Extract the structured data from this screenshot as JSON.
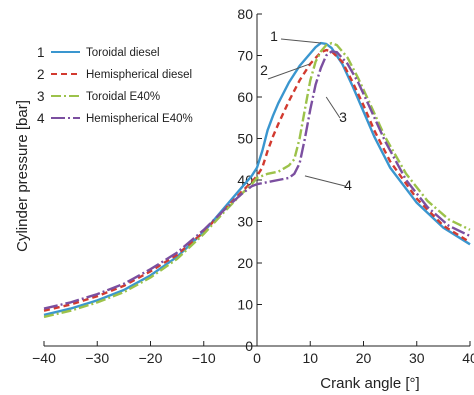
{
  "chart_data": {
    "type": "line",
    "title": "",
    "xlabel": "Crank angle [°]",
    "ylabel": "Cylinder pressure [bar]",
    "xlim": [
      -40,
      40
    ],
    "ylim": [
      0,
      80
    ],
    "x_ticks": [
      -40,
      -30,
      -20,
      -10,
      0,
      10,
      20,
      30,
      40
    ],
    "y_ticks": [
      0,
      10,
      20,
      30,
      40,
      50,
      60,
      70,
      80
    ],
    "grid": false,
    "legend_position": "top-left",
    "series": [
      {
        "id": "1",
        "name": "Toroidal diesel",
        "color": "#3a96cf",
        "dash": "solid",
        "points": [
          [
            -40,
            7.5
          ],
          [
            -35,
            9.0
          ],
          [
            -30,
            11.0
          ],
          [
            -25,
            13.5
          ],
          [
            -20,
            17.0
          ],
          [
            -15,
            21.5
          ],
          [
            -10,
            27.5
          ],
          [
            -6,
            33.5
          ],
          [
            -3,
            38.0
          ],
          [
            -1,
            41.0
          ],
          [
            0,
            43.0
          ],
          [
            1,
            47.0
          ],
          [
            2,
            52.0
          ],
          [
            3,
            55.5
          ],
          [
            4,
            58.5
          ],
          [
            6,
            63.5
          ],
          [
            8,
            67.5
          ],
          [
            10,
            70.5
          ],
          [
            11,
            72.0
          ],
          [
            12,
            73.0
          ],
          [
            13,
            72.8
          ],
          [
            14,
            71.8
          ],
          [
            16,
            68.0
          ],
          [
            18,
            62.5
          ],
          [
            20,
            56.5
          ],
          [
            22,
            50.5
          ],
          [
            25,
            43.0
          ],
          [
            30,
            34.5
          ],
          [
            35,
            28.5
          ],
          [
            40,
            24.5
          ]
        ]
      },
      {
        "id": "2",
        "name": "Hemispherical diesel",
        "color": "#d23a2f",
        "dash": "6,4",
        "points": [
          [
            -40,
            8.5
          ],
          [
            -35,
            10.0
          ],
          [
            -30,
            12.0
          ],
          [
            -25,
            14.5
          ],
          [
            -20,
            18.0
          ],
          [
            -15,
            22.0
          ],
          [
            -10,
            27.5
          ],
          [
            -6,
            33.0
          ],
          [
            -3,
            37.0
          ],
          [
            -1,
            39.5
          ],
          [
            0,
            41.0
          ],
          [
            1,
            43.0
          ],
          [
            2,
            47.0
          ],
          [
            3,
            50.5
          ],
          [
            4,
            53.5
          ],
          [
            6,
            59.0
          ],
          [
            8,
            64.0
          ],
          [
            10,
            68.0
          ],
          [
            12,
            70.8
          ],
          [
            13,
            71.3
          ],
          [
            14,
            71.0
          ],
          [
            16,
            68.5
          ],
          [
            18,
            63.5
          ],
          [
            20,
            58.0
          ],
          [
            22,
            52.0
          ],
          [
            25,
            44.5
          ],
          [
            30,
            35.5
          ],
          [
            35,
            29.0
          ],
          [
            40,
            25.0
          ]
        ]
      },
      {
        "id": "3",
        "name": "Toroidal E40%",
        "color": "#9cc24a",
        "dash": "10,3,2,3",
        "points": [
          [
            -40,
            7.0
          ],
          [
            -35,
            8.5
          ],
          [
            -30,
            10.5
          ],
          [
            -25,
            13.0
          ],
          [
            -20,
            16.5
          ],
          [
            -15,
            21.0
          ],
          [
            -10,
            27.0
          ],
          [
            -6,
            32.5
          ],
          [
            -3,
            36.5
          ],
          [
            -1,
            39.0
          ],
          [
            0,
            40.5
          ],
          [
            2,
            41.5
          ],
          [
            4,
            42.0
          ],
          [
            6,
            43.5
          ],
          [
            7,
            45.0
          ],
          [
            8,
            50.0
          ],
          [
            9,
            57.0
          ],
          [
            10,
            64.0
          ],
          [
            11,
            68.5
          ],
          [
            12,
            71.0
          ],
          [
            13,
            72.5
          ],
          [
            14,
            73.0
          ],
          [
            15,
            72.5
          ],
          [
            17,
            69.5
          ],
          [
            19,
            64.5
          ],
          [
            21,
            59.0
          ],
          [
            24,
            50.5
          ],
          [
            28,
            41.5
          ],
          [
            32,
            35.0
          ],
          [
            36,
            30.5
          ],
          [
            40,
            28.0
          ]
        ]
      },
      {
        "id": "4",
        "name": "Hemispherical E40%",
        "color": "#7b4fa0",
        "dash": "14,3,2,3",
        "points": [
          [
            -40,
            9.0
          ],
          [
            -35,
            10.5
          ],
          [
            -30,
            12.5
          ],
          [
            -25,
            15.0
          ],
          [
            -20,
            18.5
          ],
          [
            -15,
            22.5
          ],
          [
            -10,
            28.0
          ],
          [
            -6,
            33.0
          ],
          [
            -3,
            36.5
          ],
          [
            -1,
            38.5
          ],
          [
            0,
            39.0
          ],
          [
            2,
            39.5
          ],
          [
            4,
            40.0
          ],
          [
            6,
            40.5
          ],
          [
            7,
            41.5
          ],
          [
            8,
            44.0
          ],
          [
            9,
            50.0
          ],
          [
            10,
            57.0
          ],
          [
            11,
            63.0
          ],
          [
            12,
            67.0
          ],
          [
            13,
            70.0
          ],
          [
            14,
            71.0
          ],
          [
            15,
            70.8
          ],
          [
            17,
            68.0
          ],
          [
            19,
            63.5
          ],
          [
            21,
            58.0
          ],
          [
            24,
            49.5
          ],
          [
            28,
            40.0
          ],
          [
            32,
            33.5
          ],
          [
            36,
            29.0
          ],
          [
            40,
            26.5
          ]
        ]
      }
    ],
    "callouts": [
      {
        "label": "1",
        "target": [
          12,
          73.0
        ]
      },
      {
        "label": "2",
        "target": [
          10,
          68.0
        ]
      },
      {
        "label": "3",
        "target": [
          13,
          60.0
        ]
      },
      {
        "label": "4",
        "target": [
          9,
          41.0
        ]
      }
    ]
  }
}
